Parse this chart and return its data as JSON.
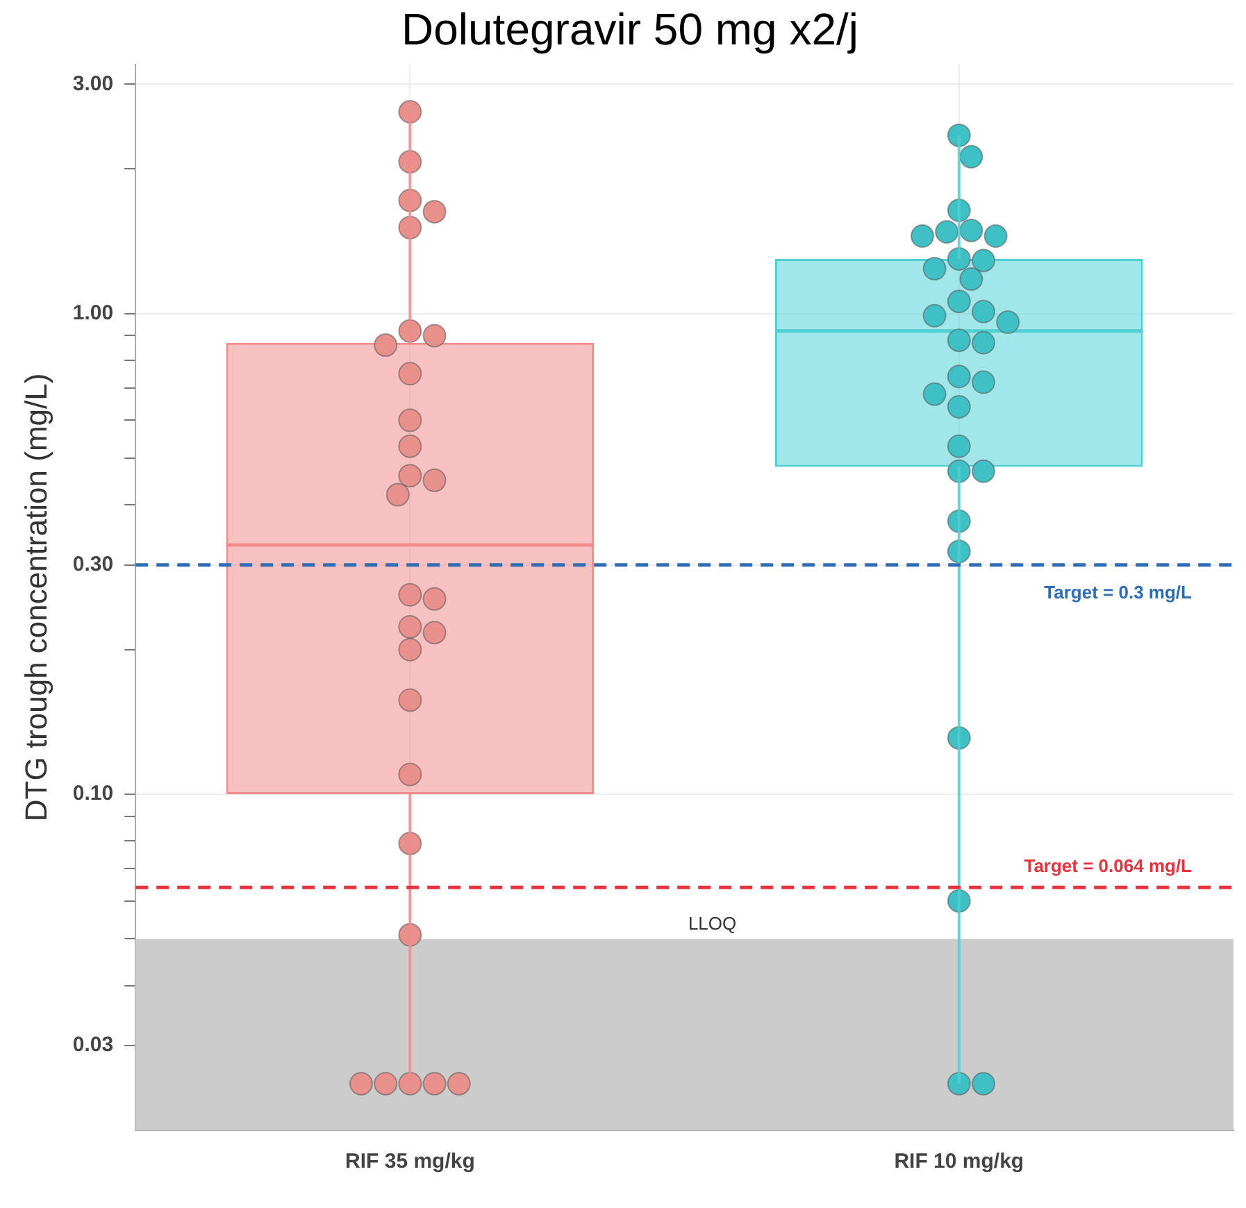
{
  "chart_data": {
    "type": "box",
    "title": "Dolutegravir 50 mg x2/j",
    "ylabel": "DTG trough concentration (mg/L)",
    "categories": [
      "RIF 35 mg/kg",
      "RIF 10 mg/kg"
    ],
    "colors": [
      "#f28b8b",
      "#4fd0d3"
    ],
    "boxes": [
      {
        "low": 0.025,
        "q1": 0.1,
        "median": 0.33,
        "q3": 0.87,
        "high": 2.63
      },
      {
        "low": 0.025,
        "q1": 0.48,
        "median": 0.92,
        "q3": 1.3,
        "high": 2.35
      }
    ],
    "series": [
      {
        "type": "scatter",
        "color": "#e8908c",
        "x": [
          "RIF 35 mg/kg",
          "RIF 35 mg/kg",
          "RIF 35 mg/kg",
          "RIF 35 mg/kg",
          "RIF 35 mg/kg",
          "RIF 35 mg/kg",
          "RIF 35 mg/kg",
          "RIF 35 mg/kg",
          "RIF 35 mg/kg",
          "RIF 35 mg/kg",
          "RIF 35 mg/kg",
          "RIF 35 mg/kg",
          "RIF 35 mg/kg",
          "RIF 35 mg/kg",
          "RIF 35 mg/kg",
          "RIF 35 mg/kg",
          "RIF 35 mg/kg",
          "RIF 35 mg/kg",
          "RIF 35 mg/kg",
          "RIF 35 mg/kg",
          "RIF 35 mg/kg",
          "RIF 35 mg/kg",
          "RIF 35 mg/kg",
          "RIF 35 mg/kg",
          "RIF 35 mg/kg",
          "RIF 35 mg/kg",
          "RIF 35 mg/kg",
          "RIF 35 mg/kg"
        ],
        "values": [
          2.63,
          2.07,
          1.72,
          1.63,
          1.51,
          0.92,
          0.9,
          0.86,
          0.75,
          0.6,
          0.53,
          0.46,
          0.45,
          0.42,
          0.26,
          0.255,
          0.223,
          0.217,
          0.2,
          0.157,
          0.11,
          0.079,
          0.051,
          0.025,
          0.025,
          0.025,
          0.025,
          0.025
        ]
      },
      {
        "type": "scatter",
        "color": "#3fc0c4",
        "x": [
          "RIF 10 mg/kg",
          "RIF 10 mg/kg",
          "RIF 10 mg/kg",
          "RIF 10 mg/kg",
          "RIF 10 mg/kg",
          "RIF 10 mg/kg",
          "RIF 10 mg/kg",
          "RIF 10 mg/kg",
          "RIF 10 mg/kg",
          "RIF 10 mg/kg",
          "RIF 10 mg/kg",
          "RIF 10 mg/kg",
          "RIF 10 mg/kg",
          "RIF 10 mg/kg",
          "RIF 10 mg/kg",
          "RIF 10 mg/kg",
          "RIF 10 mg/kg",
          "RIF 10 mg/kg",
          "RIF 10 mg/kg",
          "RIF 10 mg/kg",
          "RIF 10 mg/kg",
          "RIF 10 mg/kg",
          "RIF 10 mg/kg",
          "RIF 10 mg/kg",
          "RIF 10 mg/kg",
          "RIF 10 mg/kg",
          "RIF 10 mg/kg",
          "RIF 10 mg/kg",
          "RIF 10 mg/kg",
          "RIF 10 mg/kg"
        ],
        "values": [
          2.35,
          2.12,
          1.64,
          1.49,
          1.48,
          1.45,
          1.45,
          1.3,
          1.29,
          1.24,
          1.18,
          1.06,
          1.01,
          0.99,
          0.96,
          0.88,
          0.87,
          0.74,
          0.72,
          0.68,
          0.64,
          0.53,
          0.47,
          0.47,
          0.37,
          0.32,
          0.131,
          0.06,
          0.025,
          0.025
        ]
      }
    ],
    "marker": "circle",
    "log": "y",
    "ylim": [
      0.02,
      3.3
    ],
    "yticks": [
      {
        "value": 0.03,
        "label": "0.03"
      },
      {
        "value": 0.04,
        "label": null
      },
      {
        "value": 0.05,
        "label": null
      },
      {
        "value": 0.06,
        "label": null
      },
      {
        "value": 0.07,
        "label": null
      },
      {
        "value": 0.08,
        "label": null
      },
      {
        "value": 0.09,
        "label": null
      },
      {
        "value": 0.1,
        "label": "0.10"
      },
      {
        "value": 0.2,
        "label": null
      },
      {
        "value": 0.3,
        "label": "0.30"
      },
      {
        "value": 0.4,
        "label": null
      },
      {
        "value": 0.5,
        "label": null
      },
      {
        "value": 0.6,
        "label": null
      },
      {
        "value": 0.7,
        "label": null
      },
      {
        "value": 0.8,
        "label": null
      },
      {
        "value": 0.9,
        "label": null
      },
      {
        "value": 1,
        "label": "1.00"
      },
      {
        "value": 2,
        "label": null
      },
      {
        "value": 3,
        "label": "3.00"
      }
    ],
    "grid": true,
    "ref_lines": [
      {
        "axis": "y",
        "value": 0.3,
        "label": "Target = 0.3 mg/L",
        "color": "#2e6db4",
        "line_style": "dashed"
      },
      {
        "axis": "y",
        "value": 0.064,
        "label": "Target = 0.064 mg/L",
        "color": "#e8323e",
        "line_style": "dashed"
      }
    ],
    "bands": [
      {
        "axis": "y",
        "from": 0.02,
        "to": 0.05,
        "label": "LLOQ",
        "color": "#cccccc"
      }
    ]
  }
}
